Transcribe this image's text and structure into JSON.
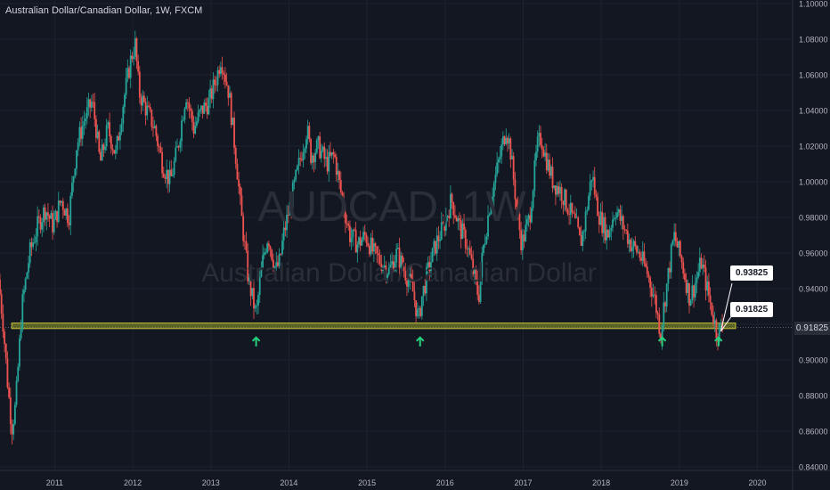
{
  "chart_data": {
    "type": "candlestick",
    "title": "Australian Dollar/Canadian Dollar, 1W, FXCM",
    "watermark_symbol": "AUDCAD, 1W",
    "watermark_name": "Australian Dollar/Canadian Dollar",
    "x_ticks": [
      "2011",
      "2012",
      "2013",
      "2014",
      "2015",
      "2016",
      "2017",
      "2018",
      "2019",
      "2020"
    ],
    "y_ticks": [
      "1.10000",
      "1.08000",
      "1.06000",
      "1.04000",
      "1.02000",
      "1.00000",
      "0.98000",
      "0.96000",
      "0.94000",
      "0.92000",
      "0.90000",
      "0.88000",
      "0.86000",
      "0.84000"
    ],
    "ylim": [
      0.838,
      1.102
    ],
    "xlim": [
      2010.3,
      2020.45
    ],
    "last_price": "0.91825",
    "support_zone": {
      "x_start": 2010.45,
      "x_end": 2019.72,
      "y_low": 0.9176,
      "y_high": 0.9207
    },
    "arrows": [
      2013.58,
      2015.68,
      2018.78,
      2019.5
    ],
    "annotations": [
      {
        "text": "0.93825",
        "x": 2019.62,
        "y": 0.935
      },
      {
        "text": "0.91825",
        "x": 2019.5,
        "y": 0.915
      }
    ],
    "price_path": [
      [
        2010.3,
        0.945
      ],
      [
        2010.36,
        0.92
      ],
      [
        2010.42,
        0.885
      ],
      [
        2010.47,
        0.862
      ],
      [
        2010.52,
        0.875
      ],
      [
        2010.6,
        0.93
      ],
      [
        2010.7,
        0.96
      ],
      [
        2010.8,
        0.975
      ],
      [
        2010.9,
        0.985
      ],
      [
        2011.0,
        0.975
      ],
      [
        2011.1,
        0.99
      ],
      [
        2011.2,
        0.98
      ],
      [
        2011.3,
        1.02
      ],
      [
        2011.4,
        1.035
      ],
      [
        2011.5,
        1.045
      ],
      [
        2011.55,
        1.03
      ],
      [
        2011.6,
        1.01
      ],
      [
        2011.7,
        1.03
      ],
      [
        2011.8,
        1.015
      ],
      [
        2011.9,
        1.045
      ],
      [
        2012.0,
        1.07
      ],
      [
        2012.05,
        1.077
      ],
      [
        2012.1,
        1.05
      ],
      [
        2012.2,
        1.04
      ],
      [
        2012.3,
        1.03
      ],
      [
        2012.4,
        1.01
      ],
      [
        2012.5,
        1.0
      ],
      [
        2012.6,
        1.02
      ],
      [
        2012.7,
        1.05
      ],
      [
        2012.8,
        1.03
      ],
      [
        2012.9,
        1.04
      ],
      [
        2013.0,
        1.045
      ],
      [
        2013.1,
        1.06
      ],
      [
        2013.15,
        1.07
      ],
      [
        2013.25,
        1.05
      ],
      [
        2013.3,
        1.03
      ],
      [
        2013.35,
        1.01
      ],
      [
        2013.4,
        0.985
      ],
      [
        2013.45,
        0.965
      ],
      [
        2013.5,
        0.945
      ],
      [
        2013.55,
        0.935
      ],
      [
        2013.6,
        0.925
      ],
      [
        2013.65,
        0.945
      ],
      [
        2013.7,
        0.96
      ],
      [
        2013.75,
        0.97
      ],
      [
        2013.8,
        0.96
      ],
      [
        2013.85,
        0.95
      ],
      [
        2013.9,
        0.955
      ],
      [
        2013.95,
        0.97
      ],
      [
        2014.0,
        0.98
      ],
      [
        2014.1,
        1.0
      ],
      [
        2014.2,
        1.02
      ],
      [
        2014.25,
        1.03
      ],
      [
        2014.3,
        1.015
      ],
      [
        2014.4,
        1.02
      ],
      [
        2014.5,
        1.01
      ],
      [
        2014.6,
        1.015
      ],
      [
        2014.7,
        0.99
      ],
      [
        2014.8,
        0.97
      ],
      [
        2014.9,
        0.965
      ],
      [
        2015.0,
        0.97
      ],
      [
        2015.1,
        0.96
      ],
      [
        2015.2,
        0.955
      ],
      [
        2015.3,
        0.95
      ],
      [
        2015.4,
        0.96
      ],
      [
        2015.5,
        0.95
      ],
      [
        2015.6,
        0.94
      ],
      [
        2015.68,
        0.922
      ],
      [
        2015.72,
        0.935
      ],
      [
        2015.8,
        0.95
      ],
      [
        2015.9,
        0.965
      ],
      [
        2016.0,
        0.975
      ],
      [
        2016.1,
        0.99
      ],
      [
        2016.2,
        0.975
      ],
      [
        2016.3,
        0.965
      ],
      [
        2016.35,
        0.955
      ],
      [
        2016.4,
        0.945
      ],
      [
        2016.45,
        0.935
      ],
      [
        2016.5,
        0.96
      ],
      [
        2016.6,
        0.99
      ],
      [
        2016.7,
        1.01
      ],
      [
        2016.8,
        1.03
      ],
      [
        2016.85,
        1.02
      ],
      [
        2016.9,
        1.0
      ],
      [
        2016.95,
        0.98
      ],
      [
        2017.0,
        0.965
      ],
      [
        2017.1,
        0.98
      ],
      [
        2017.15,
        1.0
      ],
      [
        2017.2,
        1.02
      ],
      [
        2017.25,
        1.025
      ],
      [
        2017.3,
        1.015
      ],
      [
        2017.4,
        1.0
      ],
      [
        2017.5,
        0.995
      ],
      [
        2017.6,
        0.985
      ],
      [
        2017.7,
        0.975
      ],
      [
        2017.75,
        0.965
      ],
      [
        2017.8,
        0.975
      ],
      [
        2017.85,
        0.99
      ],
      [
        2017.9,
        1.005
      ],
      [
        2017.95,
        0.99
      ],
      [
        2018.0,
        0.98
      ],
      [
        2018.1,
        0.97
      ],
      [
        2018.2,
        0.985
      ],
      [
        2018.3,
        0.975
      ],
      [
        2018.4,
        0.965
      ],
      [
        2018.5,
        0.96
      ],
      [
        2018.6,
        0.95
      ],
      [
        2018.7,
        0.935
      ],
      [
        2018.78,
        0.915
      ],
      [
        2018.82,
        0.93
      ],
      [
        2018.9,
        0.955
      ],
      [
        2018.95,
        0.97
      ],
      [
        2019.05,
        0.955
      ],
      [
        2019.1,
        0.945
      ],
      [
        2019.15,
        0.935
      ],
      [
        2019.2,
        0.94
      ],
      [
        2019.3,
        0.955
      ],
      [
        2019.35,
        0.945
      ],
      [
        2019.4,
        0.935
      ],
      [
        2019.45,
        0.925
      ],
      [
        2019.5,
        0.915
      ],
      [
        2019.55,
        0.918
      ]
    ]
  }
}
